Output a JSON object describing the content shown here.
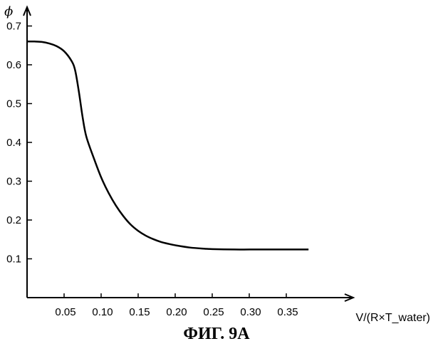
{
  "chart_data": {
    "type": "line",
    "title": "",
    "xlabel": "V/(R×T_water)",
    "ylabel": "ϕ",
    "xlim": [
      0,
      0.39
    ],
    "ylim": [
      0,
      0.71
    ],
    "x_ticks": [
      "0.05",
      "0.10",
      "0.15",
      "0.20",
      "0.25",
      "0.30",
      "0.35"
    ],
    "y_ticks": [
      "0.1",
      "0.2",
      "0.3",
      "0.4",
      "0.5",
      "0.6",
      "0.7"
    ],
    "grid": false,
    "legend": "none",
    "series": [
      {
        "x": [
          0.0,
          0.01,
          0.02,
          0.03,
          0.04,
          0.05,
          0.06,
          0.065,
          0.07,
          0.075,
          0.08,
          0.09,
          0.1,
          0.11,
          0.12,
          0.13,
          0.14,
          0.15,
          0.16,
          0.17,
          0.18,
          0.19,
          0.2,
          0.22,
          0.24,
          0.25,
          0.28,
          0.3,
          0.33,
          0.35,
          0.38
        ],
        "y": [
          0.66,
          0.66,
          0.659,
          0.655,
          0.648,
          0.635,
          0.61,
          0.585,
          0.53,
          0.465,
          0.415,
          0.36,
          0.31,
          0.27,
          0.237,
          0.21,
          0.188,
          0.172,
          0.16,
          0.151,
          0.144,
          0.139,
          0.135,
          0.129,
          0.126,
          0.125,
          0.124,
          0.124,
          0.124,
          0.124,
          0.124
        ]
      }
    ]
  },
  "caption": "ФИГ. 9A"
}
